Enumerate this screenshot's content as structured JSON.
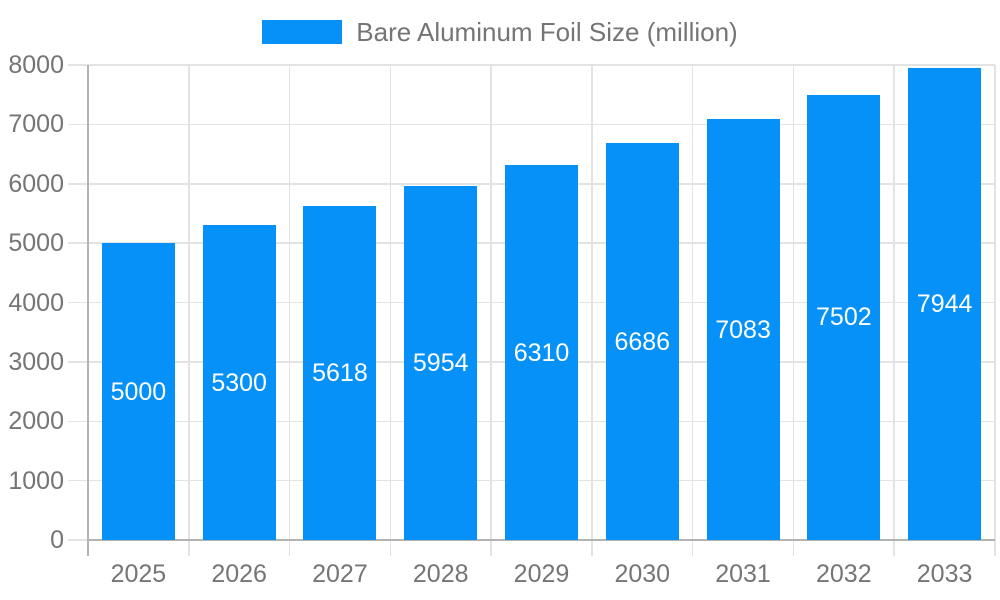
{
  "legend": {
    "label": "Bare Aluminum Foil Size (million)"
  },
  "chart_data": {
    "type": "bar",
    "title": "Bare Aluminum Foil Size (million)",
    "categories": [
      "2025",
      "2026",
      "2027",
      "2028",
      "2029",
      "2030",
      "2031",
      "2032",
      "2033"
    ],
    "values": [
      5000,
      5300,
      5618,
      5954,
      6310,
      6686,
      7083,
      7502,
      7944
    ],
    "xlabel": "",
    "ylabel": "",
    "ylim": [
      0,
      8000
    ],
    "ytick_step": 1000,
    "yticks": [
      0,
      1000,
      2000,
      3000,
      4000,
      5000,
      6000,
      7000,
      8000
    ],
    "grid": true,
    "legend_position": "top-center",
    "value_labels": "inside-center",
    "colors": {
      "bar": "#0591f8",
      "grid": "#e3e3e3",
      "axis": "#b3b3b3",
      "tick_text": "#757575",
      "legend_text": "#757575",
      "value_label_text": "#ffffff",
      "background": "#ffffff"
    }
  }
}
